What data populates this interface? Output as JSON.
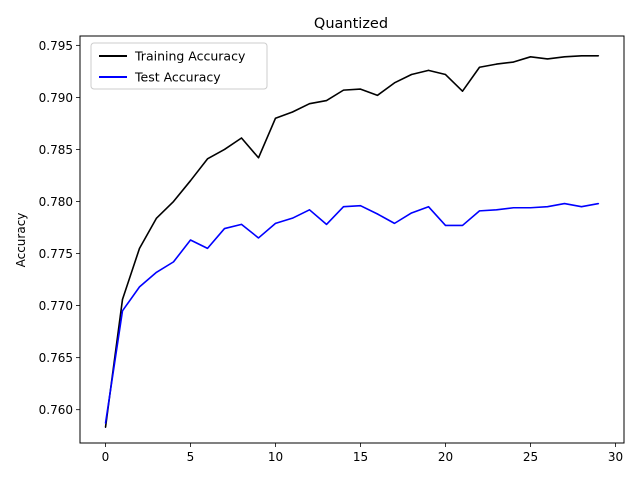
{
  "chart_data": {
    "type": "line",
    "title": "Quantized",
    "xlabel": "",
    "ylabel": "Accuracy",
    "xlim": [
      -1.5,
      30.5
    ],
    "ylim": [
      0.7568,
      0.7959
    ],
    "xticks": [
      0,
      5,
      10,
      15,
      20,
      25,
      30
    ],
    "yticks": [
      0.76,
      0.765,
      0.77,
      0.775,
      0.78,
      0.785,
      0.79,
      0.795
    ],
    "ytick_labels": [
      "0.760",
      "0.765",
      "0.770",
      "0.775",
      "0.780",
      "0.785",
      "0.790",
      "0.795"
    ],
    "grid": false,
    "legend_position": "top-left",
    "x": [
      0,
      1,
      2,
      3,
      4,
      5,
      6,
      7,
      8,
      9,
      10,
      11,
      12,
      13,
      14,
      15,
      16,
      17,
      18,
      19,
      20,
      21,
      22,
      23,
      24,
      25,
      26,
      27,
      28,
      29
    ],
    "series": [
      {
        "name": "Training Accuracy",
        "color": "#000000",
        "values": [
          0.7583,
          0.7706,
          0.7755,
          0.7784,
          0.78,
          0.782,
          0.7841,
          0.785,
          0.7861,
          0.7842,
          0.788,
          0.7886,
          0.7894,
          0.7897,
          0.7907,
          0.7908,
          0.7902,
          0.7914,
          0.7922,
          0.7926,
          0.7922,
          0.7906,
          0.7929,
          0.7932,
          0.7934,
          0.7939,
          0.7937,
          0.7939,
          0.794,
          0.794
        ]
      },
      {
        "name": "Test Accuracy",
        "color": "#0000ff",
        "values": [
          0.7587,
          0.7695,
          0.7718,
          0.7732,
          0.7742,
          0.7763,
          0.7755,
          0.7774,
          0.7778,
          0.7765,
          0.7779,
          0.7784,
          0.7792,
          0.7778,
          0.7795,
          0.7796,
          0.7788,
          0.7779,
          0.7789,
          0.7795,
          0.7777,
          0.7777,
          0.7791,
          0.7792,
          0.7794,
          0.7794,
          0.7795,
          0.7798,
          0.7795,
          0.7798
        ]
      }
    ]
  }
}
